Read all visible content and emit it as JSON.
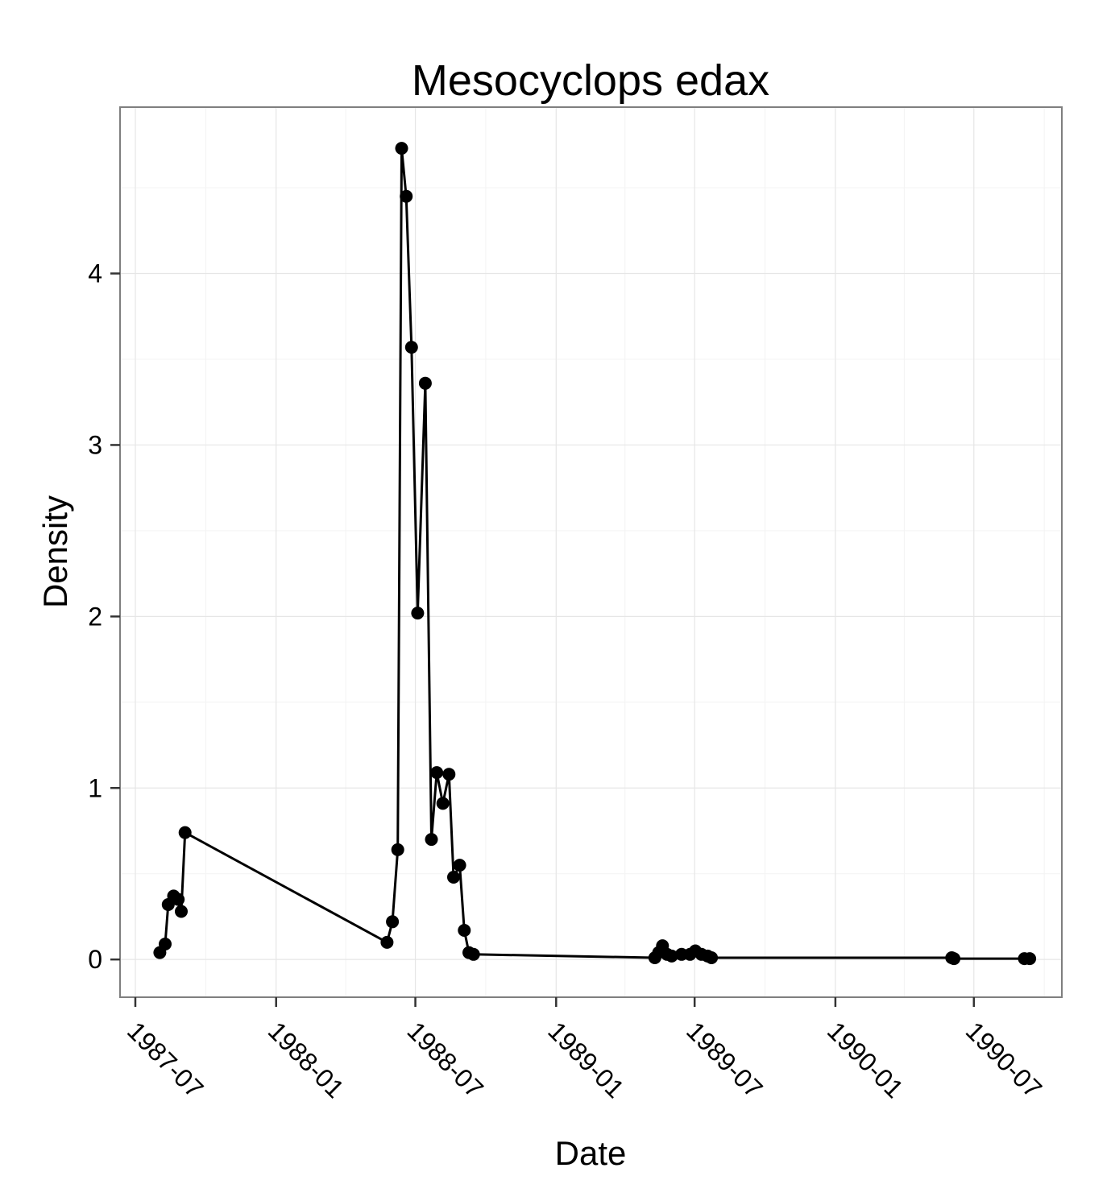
{
  "chart_data": {
    "type": "line",
    "title": "Mesocyclops edax",
    "xlabel": "Date",
    "ylabel": "Density",
    "x_type": "date",
    "xlim": [
      "1987-06-11",
      "1990-10-24"
    ],
    "ylim": [
      -0.22,
      4.97
    ],
    "x_ticks": [
      "1987-07-01",
      "1988-01-01",
      "1988-07-01",
      "1989-01-01",
      "1989-07-01",
      "1990-01-01",
      "1990-07-01"
    ],
    "x_tick_labels": [
      "1987-07",
      "1988-01",
      "1988-07",
      "1989-01",
      "1989-07",
      "1990-01",
      "1990-07"
    ],
    "x_minor_ticks": [
      "1987-10-01",
      "1988-04-01",
      "1988-10-01",
      "1989-04-01",
      "1989-10-01",
      "1990-04-01",
      "1990-10-01"
    ],
    "y_ticks": [
      0,
      1,
      2,
      3,
      4
    ],
    "y_tick_labels": [
      "0",
      "1",
      "2",
      "3",
      "4"
    ],
    "y_minor_ticks": [
      0.5,
      1.5,
      2.5,
      3.5,
      4.5
    ],
    "grid": true,
    "legend": "none",
    "colors": {
      "series": "#000000",
      "grid": "#e6e6e6",
      "border": "#7f7f7f"
    },
    "series": [
      {
        "x": [
          "1987-08-02",
          "1987-08-09",
          "1987-08-13",
          "1987-08-20",
          "1987-08-26",
          "1987-08-30",
          "1987-09-04",
          "1988-05-25",
          "1988-06-01",
          "1988-06-08",
          "1988-06-13",
          "1988-06-19",
          "1988-06-26",
          "1988-07-04",
          "1988-07-14",
          "1988-07-22",
          "1988-07-29",
          "1988-08-06",
          "1988-08-14",
          "1988-08-20",
          "1988-08-28",
          "1988-09-03",
          "1988-09-09",
          "1988-09-15",
          "1989-05-10",
          "1989-05-15",
          "1989-05-20",
          "1989-05-26",
          "1989-06-01",
          "1989-06-14",
          "1989-06-25",
          "1989-07-02",
          "1989-07-10",
          "1989-07-18",
          "1989-07-23",
          "1990-06-02",
          "1990-06-05",
          "1990-09-05",
          "1990-09-12"
        ],
        "y": [
          0.04,
          0.09,
          0.32,
          0.37,
          0.35,
          0.28,
          0.74,
          0.1,
          0.22,
          0.64,
          4.73,
          4.45,
          3.57,
          2.02,
          3.36,
          0.7,
          1.09,
          0.91,
          1.08,
          0.48,
          0.55,
          0.17,
          0.04,
          0.03,
          0.01,
          0.04,
          0.08,
          0.03,
          0.02,
          0.03,
          0.03,
          0.05,
          0.03,
          0.02,
          0.01,
          0.01,
          0.005,
          0.005,
          0.005
        ]
      }
    ]
  }
}
